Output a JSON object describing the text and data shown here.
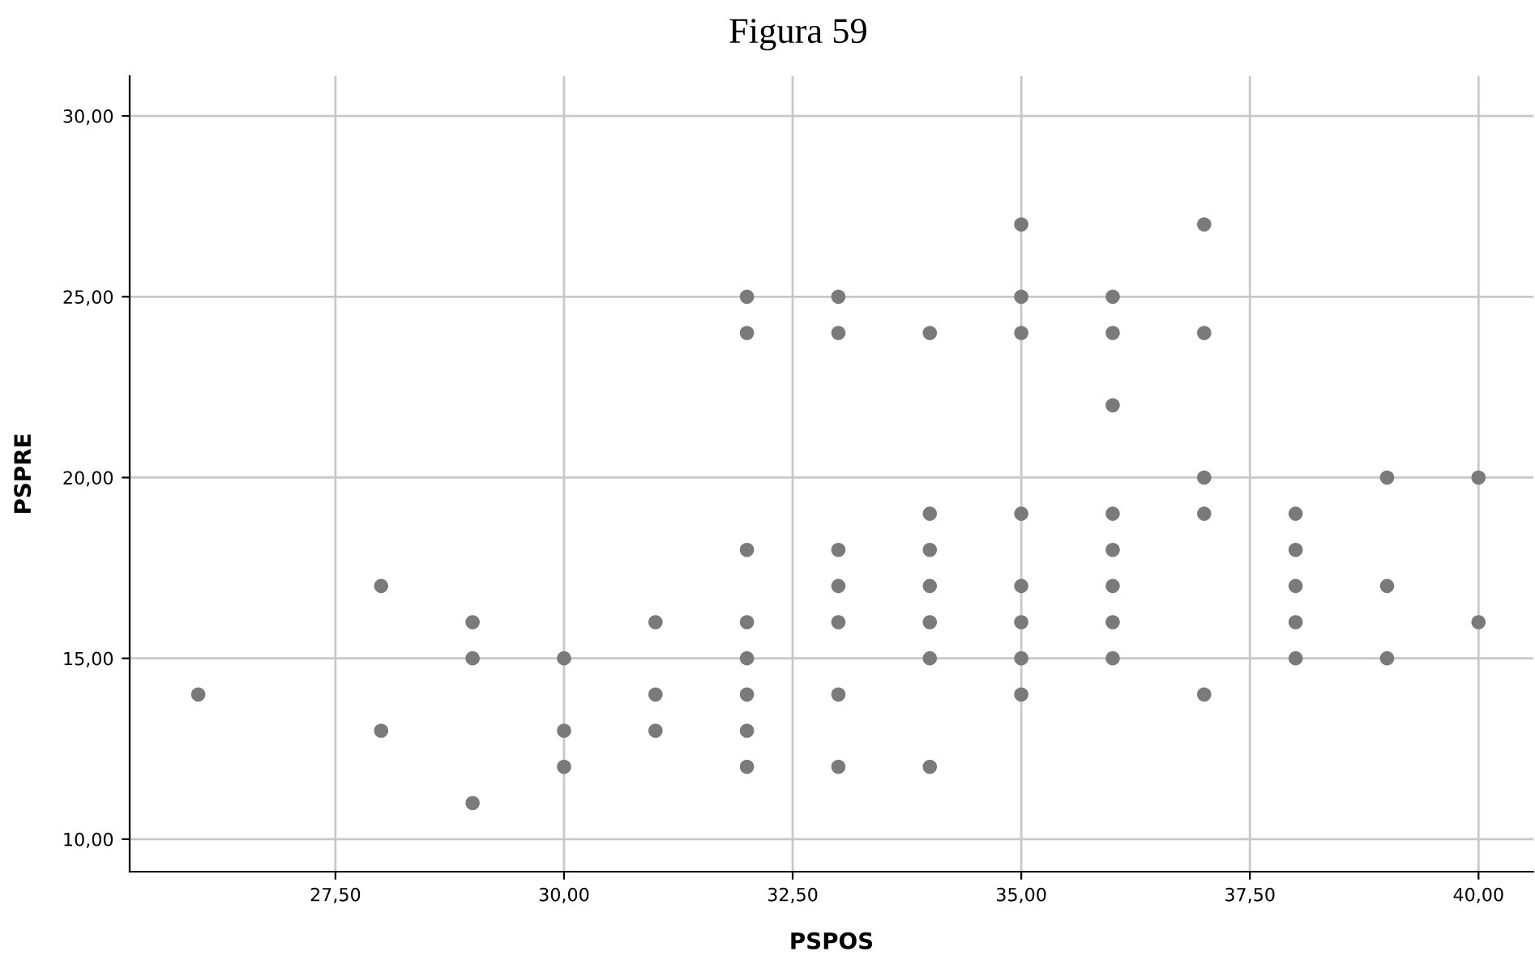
{
  "chart_data": {
    "type": "scatter",
    "title": "Figura 59",
    "xlabel": "PSPOS",
    "ylabel": "PSPRE",
    "x": [
      26,
      28,
      28,
      29,
      29,
      29,
      30,
      30,
      30,
      31,
      31,
      31,
      32,
      32,
      32,
      32,
      32,
      32,
      32,
      32,
      33,
      33,
      33,
      33,
      33,
      33,
      33,
      34,
      34,
      34,
      34,
      34,
      34,
      34,
      35,
      35,
      35,
      35,
      35,
      35,
      35,
      35,
      36,
      36,
      36,
      36,
      36,
      36,
      36,
      36,
      37,
      37,
      37,
      37,
      37,
      38,
      38,
      38,
      38,
      38,
      39,
      39,
      39,
      40,
      40
    ],
    "series": [
      {
        "color": "#7a7a7a",
        "values": [
          14,
          17,
          13,
          16,
          15,
          11,
          15,
          13,
          12,
          16,
          14,
          13,
          25,
          24,
          18,
          16,
          15,
          14,
          13,
          12,
          25,
          24,
          18,
          17,
          16,
          14,
          12,
          24,
          19,
          18,
          17,
          16,
          15,
          12,
          27,
          25,
          24,
          19,
          17,
          16,
          15,
          14,
          25,
          24,
          22,
          19,
          18,
          17,
          16,
          15,
          27,
          24,
          20,
          19,
          14,
          19,
          18,
          17,
          16,
          15,
          20,
          17,
          15,
          20,
          16
        ]
      }
    ],
    "marker": "circle",
    "grid": true,
    "legend": false,
    "xlim": [
      25.25,
      40.6
    ],
    "ylim": [
      9.1,
      31.1
    ],
    "xticks": [
      {
        "value": 27.5,
        "label": "27,50"
      },
      {
        "value": 30,
        "label": "30,00"
      },
      {
        "value": 32.5,
        "label": "32,50"
      },
      {
        "value": 35,
        "label": "35,00"
      },
      {
        "value": 37.5,
        "label": "37,50"
      },
      {
        "value": 40,
        "label": "40,00"
      }
    ],
    "yticks": [
      {
        "value": 10,
        "label": "10,00"
      },
      {
        "value": 15,
        "label": "15,00"
      },
      {
        "value": 20,
        "label": "20,00"
      },
      {
        "value": 25,
        "label": "25,00"
      },
      {
        "value": 30,
        "label": "30,00"
      }
    ]
  }
}
